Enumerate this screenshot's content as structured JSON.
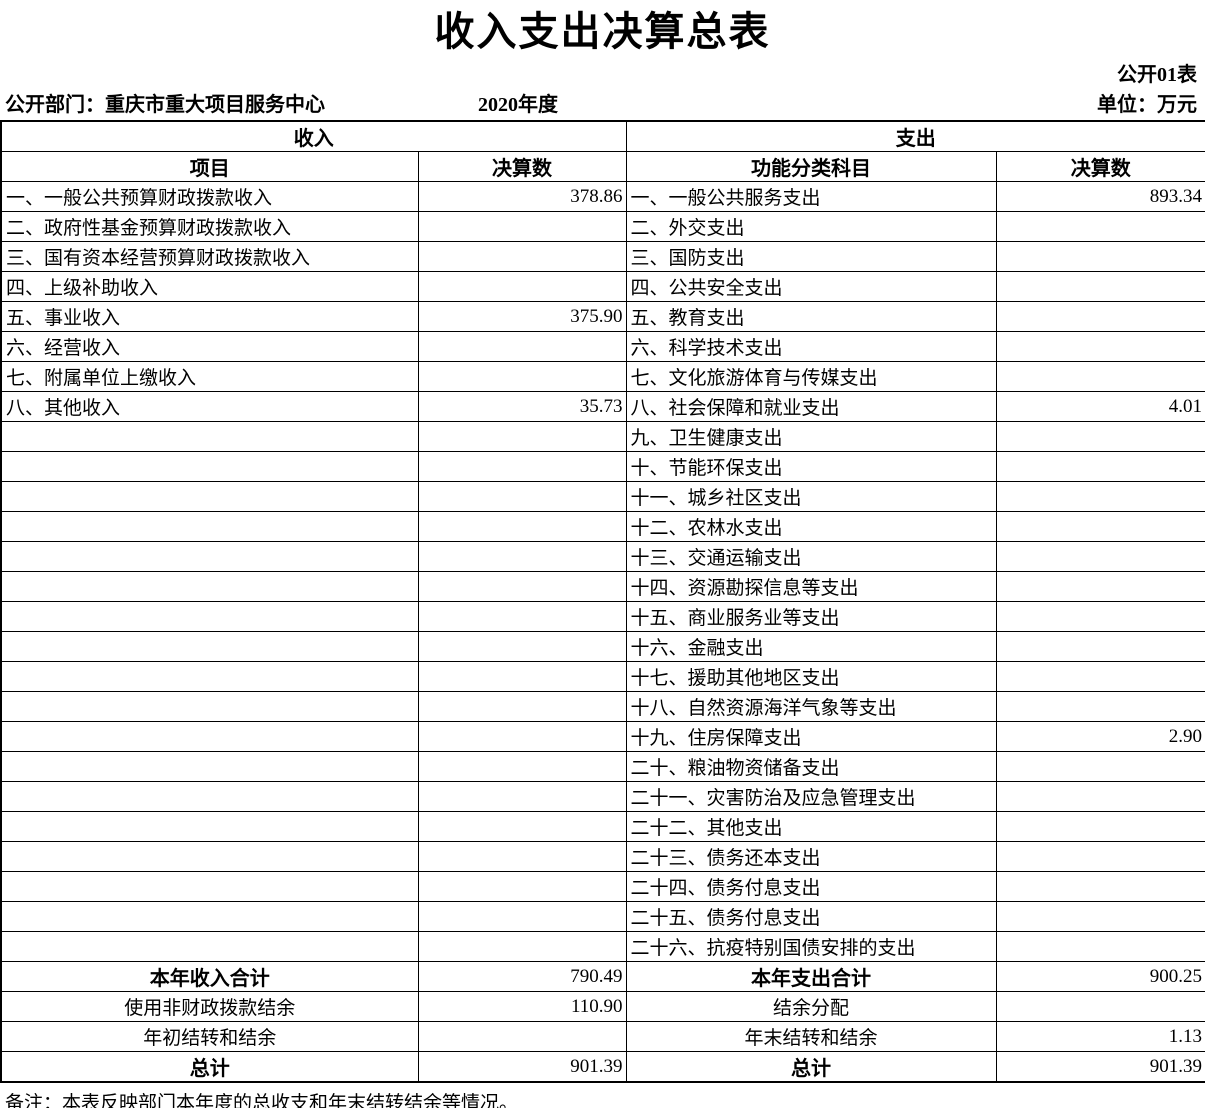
{
  "meta": {
    "title": "收入支出决算总表",
    "table_code": "公开01表",
    "department": "公开部门：重庆市重大项目服务中心",
    "year": "2020年度",
    "unit": "单位：万元",
    "note": "备注：本表反映部门本年度的总收支和年末结转结余等情况。"
  },
  "table": {
    "income_header": "收入",
    "expense_header": "支出",
    "income_cols": [
      "项目",
      "决算数"
    ],
    "expense_cols": [
      "功能分类科目",
      "决算数"
    ],
    "rows": [
      {
        "income_item": "一、一般公共预算财政拨款收入",
        "income_value": "378.86",
        "expense_item": "一、一般公共服务支出",
        "expense_value": "893.34"
      },
      {
        "income_item": "二、政府性基金预算财政拨款收入",
        "income_value": "",
        "expense_item": "二、外交支出",
        "expense_value": ""
      },
      {
        "income_item": "三、国有资本经营预算财政拨款收入",
        "income_value": "",
        "expense_item": "三、国防支出",
        "expense_value": ""
      },
      {
        "income_item": "四、上级补助收入",
        "income_value": "",
        "expense_item": "四、公共安全支出",
        "expense_value": ""
      },
      {
        "income_item": "五、事业收入",
        "income_value": "375.90",
        "expense_item": "五、教育支出",
        "expense_value": ""
      },
      {
        "income_item": "六、经营收入",
        "income_value": "",
        "expense_item": "六、科学技术支出",
        "expense_value": ""
      },
      {
        "income_item": "七、附属单位上缴收入",
        "income_value": "",
        "expense_item": "七、文化旅游体育与传媒支出",
        "expense_value": ""
      },
      {
        "income_item": "八、其他收入",
        "income_value": "35.73",
        "expense_item": "八、社会保障和就业支出",
        "expense_value": "4.01"
      },
      {
        "income_item": "",
        "income_value": "",
        "expense_item": "九、卫生健康支出",
        "expense_value": ""
      },
      {
        "income_item": "",
        "income_value": "",
        "expense_item": "十、节能环保支出",
        "expense_value": ""
      },
      {
        "income_item": "",
        "income_value": "",
        "expense_item": "十一、城乡社区支出",
        "expense_value": ""
      },
      {
        "income_item": "",
        "income_value": "",
        "expense_item": "十二、农林水支出",
        "expense_value": ""
      },
      {
        "income_item": "",
        "income_value": "",
        "expense_item": "十三、交通运输支出",
        "expense_value": ""
      },
      {
        "income_item": "",
        "income_value": "",
        "expense_item": "十四、资源勘探信息等支出",
        "expense_value": ""
      },
      {
        "income_item": "",
        "income_value": "",
        "expense_item": "十五、商业服务业等支出",
        "expense_value": ""
      },
      {
        "income_item": "",
        "income_value": "",
        "expense_item": "十六、金融支出",
        "expense_value": ""
      },
      {
        "income_item": "",
        "income_value": "",
        "expense_item": "十七、援助其他地区支出",
        "expense_value": ""
      },
      {
        "income_item": "",
        "income_value": "",
        "expense_item": "十八、自然资源海洋气象等支出",
        "expense_value": ""
      },
      {
        "income_item": "",
        "income_value": "",
        "expense_item": "十九、住房保障支出",
        "expense_value": "2.90"
      },
      {
        "income_item": "",
        "income_value": "",
        "expense_item": "二十、粮油物资储备支出",
        "expense_value": ""
      },
      {
        "income_item": "",
        "income_value": "",
        "expense_item": "二十一、灾害防治及应急管理支出",
        "expense_value": ""
      },
      {
        "income_item": "",
        "income_value": "",
        "expense_item": "二十二、其他支出",
        "expense_value": ""
      },
      {
        "income_item": "",
        "income_value": "",
        "expense_item": "二十三、债务还本支出",
        "expense_value": ""
      },
      {
        "income_item": "",
        "income_value": "",
        "expense_item": "二十四、债务付息支出",
        "expense_value": ""
      },
      {
        "income_item": "",
        "income_value": "",
        "expense_item": "二十五、债务付息支出",
        "expense_value": ""
      },
      {
        "income_item": "",
        "income_value": "",
        "expense_item": "二十六、抗疫特别国债安排的支出",
        "expense_value": ""
      }
    ],
    "summary_rows": [
      {
        "income_item": "本年收入合计",
        "income_value": "790.49",
        "expense_item": "本年支出合计",
        "expense_value": "900.25",
        "bold": true
      },
      {
        "income_item": "使用非财政拨款结余",
        "income_value": "110.90",
        "expense_item": "结余分配",
        "expense_value": "",
        "bold": false
      },
      {
        "income_item": "年初结转和结余",
        "income_value": "",
        "expense_item": "年末结转和结余",
        "expense_value": "1.13",
        "bold": false
      },
      {
        "income_item": "总计",
        "income_value": "901.39",
        "expense_item": "总计",
        "expense_value": "901.39",
        "bold": true
      }
    ]
  }
}
